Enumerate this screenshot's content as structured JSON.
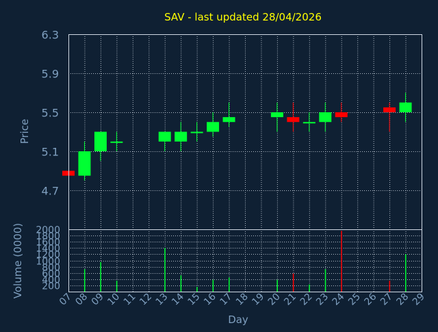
{
  "chart_data": [
    {
      "type": "candlestick",
      "title": "SAV - last updated 28/04/2026",
      "ylabel": "Price",
      "ylim": [
        4.3,
        6.3
      ],
      "yticks": [
        "6.3",
        "5.9",
        "5.5",
        "5.1",
        "4.7"
      ],
      "grid": true,
      "up_color": "#00ff33",
      "down_color": "#ff0000",
      "candles": [
        {
          "day": 7,
          "open": 4.9,
          "close": 4.85,
          "high": 4.9,
          "low": 4.85
        },
        {
          "day": 8,
          "open": 4.85,
          "close": 5.1,
          "high": 5.2,
          "low": 4.8
        },
        {
          "day": 9,
          "open": 5.1,
          "close": 5.3,
          "high": 5.3,
          "low": 5.0
        },
        {
          "day": 10,
          "open": 5.2,
          "close": 5.2,
          "high": 5.3,
          "low": 5.1
        },
        {
          "day": 13,
          "open": 5.2,
          "close": 5.3,
          "high": 5.3,
          "low": 5.1
        },
        {
          "day": 14,
          "open": 5.2,
          "close": 5.3,
          "high": 5.4,
          "low": 5.1
        },
        {
          "day": 15,
          "open": 5.3,
          "close": 5.3,
          "high": 5.4,
          "low": 5.2
        },
        {
          "day": 16,
          "open": 5.3,
          "close": 5.4,
          "high": 5.5,
          "low": 5.25
        },
        {
          "day": 17,
          "open": 5.4,
          "close": 5.45,
          "high": 5.6,
          "low": 5.35
        },
        {
          "day": 20,
          "open": 5.45,
          "close": 5.5,
          "high": 5.6,
          "low": 5.3
        },
        {
          "day": 21,
          "open": 5.45,
          "close": 5.4,
          "high": 5.6,
          "low": 5.3
        },
        {
          "day": 22,
          "open": 5.4,
          "close": 5.4,
          "high": 5.5,
          "low": 5.3
        },
        {
          "day": 23,
          "open": 5.4,
          "close": 5.5,
          "high": 5.6,
          "low": 5.3
        },
        {
          "day": 24,
          "open": 5.5,
          "close": 5.45,
          "high": 5.6,
          "low": 5.4
        },
        {
          "day": 27,
          "open": 5.55,
          "close": 5.5,
          "high": 5.6,
          "low": 5.3
        },
        {
          "day": 28,
          "open": 5.5,
          "close": 5.6,
          "high": 5.7,
          "low": 5.4
        }
      ]
    },
    {
      "type": "bar",
      "ylabel": "Volume (0000)",
      "xlabel": "Day",
      "ylim": [
        0,
        2000
      ],
      "yticks": [
        "2000",
        "1800",
        "1600",
        "1400",
        "1200",
        "1000",
        "800",
        "600",
        "400",
        "200"
      ],
      "xticks": [
        "07",
        "08",
        "09",
        "10",
        "11",
        "12",
        "13",
        "14",
        "15",
        "16",
        "17",
        "18",
        "19",
        "20",
        "21",
        "22",
        "23",
        "24",
        "25",
        "26",
        "27",
        "28",
        "29"
      ],
      "volumes": [
        {
          "day": 7,
          "value": 0,
          "color": "#ff0000"
        },
        {
          "day": 8,
          "value": 720,
          "color": "#00ff33"
        },
        {
          "day": 9,
          "value": 950,
          "color": "#00ff33"
        },
        {
          "day": 10,
          "value": 350,
          "color": "#00ff33"
        },
        {
          "day": 13,
          "value": 1400,
          "color": "#00ff33"
        },
        {
          "day": 14,
          "value": 520,
          "color": "#00ff33"
        },
        {
          "day": 15,
          "value": 150,
          "color": "#00ff33"
        },
        {
          "day": 16,
          "value": 380,
          "color": "#00ff33"
        },
        {
          "day": 17,
          "value": 450,
          "color": "#00ff33"
        },
        {
          "day": 20,
          "value": 380,
          "color": "#00ff33"
        },
        {
          "day": 21,
          "value": 580,
          "color": "#ff0000"
        },
        {
          "day": 22,
          "value": 230,
          "color": "#00ff33"
        },
        {
          "day": 23,
          "value": 720,
          "color": "#00ff33"
        },
        {
          "day": 24,
          "value": 1950,
          "color": "#ff0000"
        },
        {
          "day": 27,
          "value": 350,
          "color": "#ff0000"
        },
        {
          "day": 28,
          "value": 1200,
          "color": "#00ff33"
        }
      ]
    }
  ]
}
